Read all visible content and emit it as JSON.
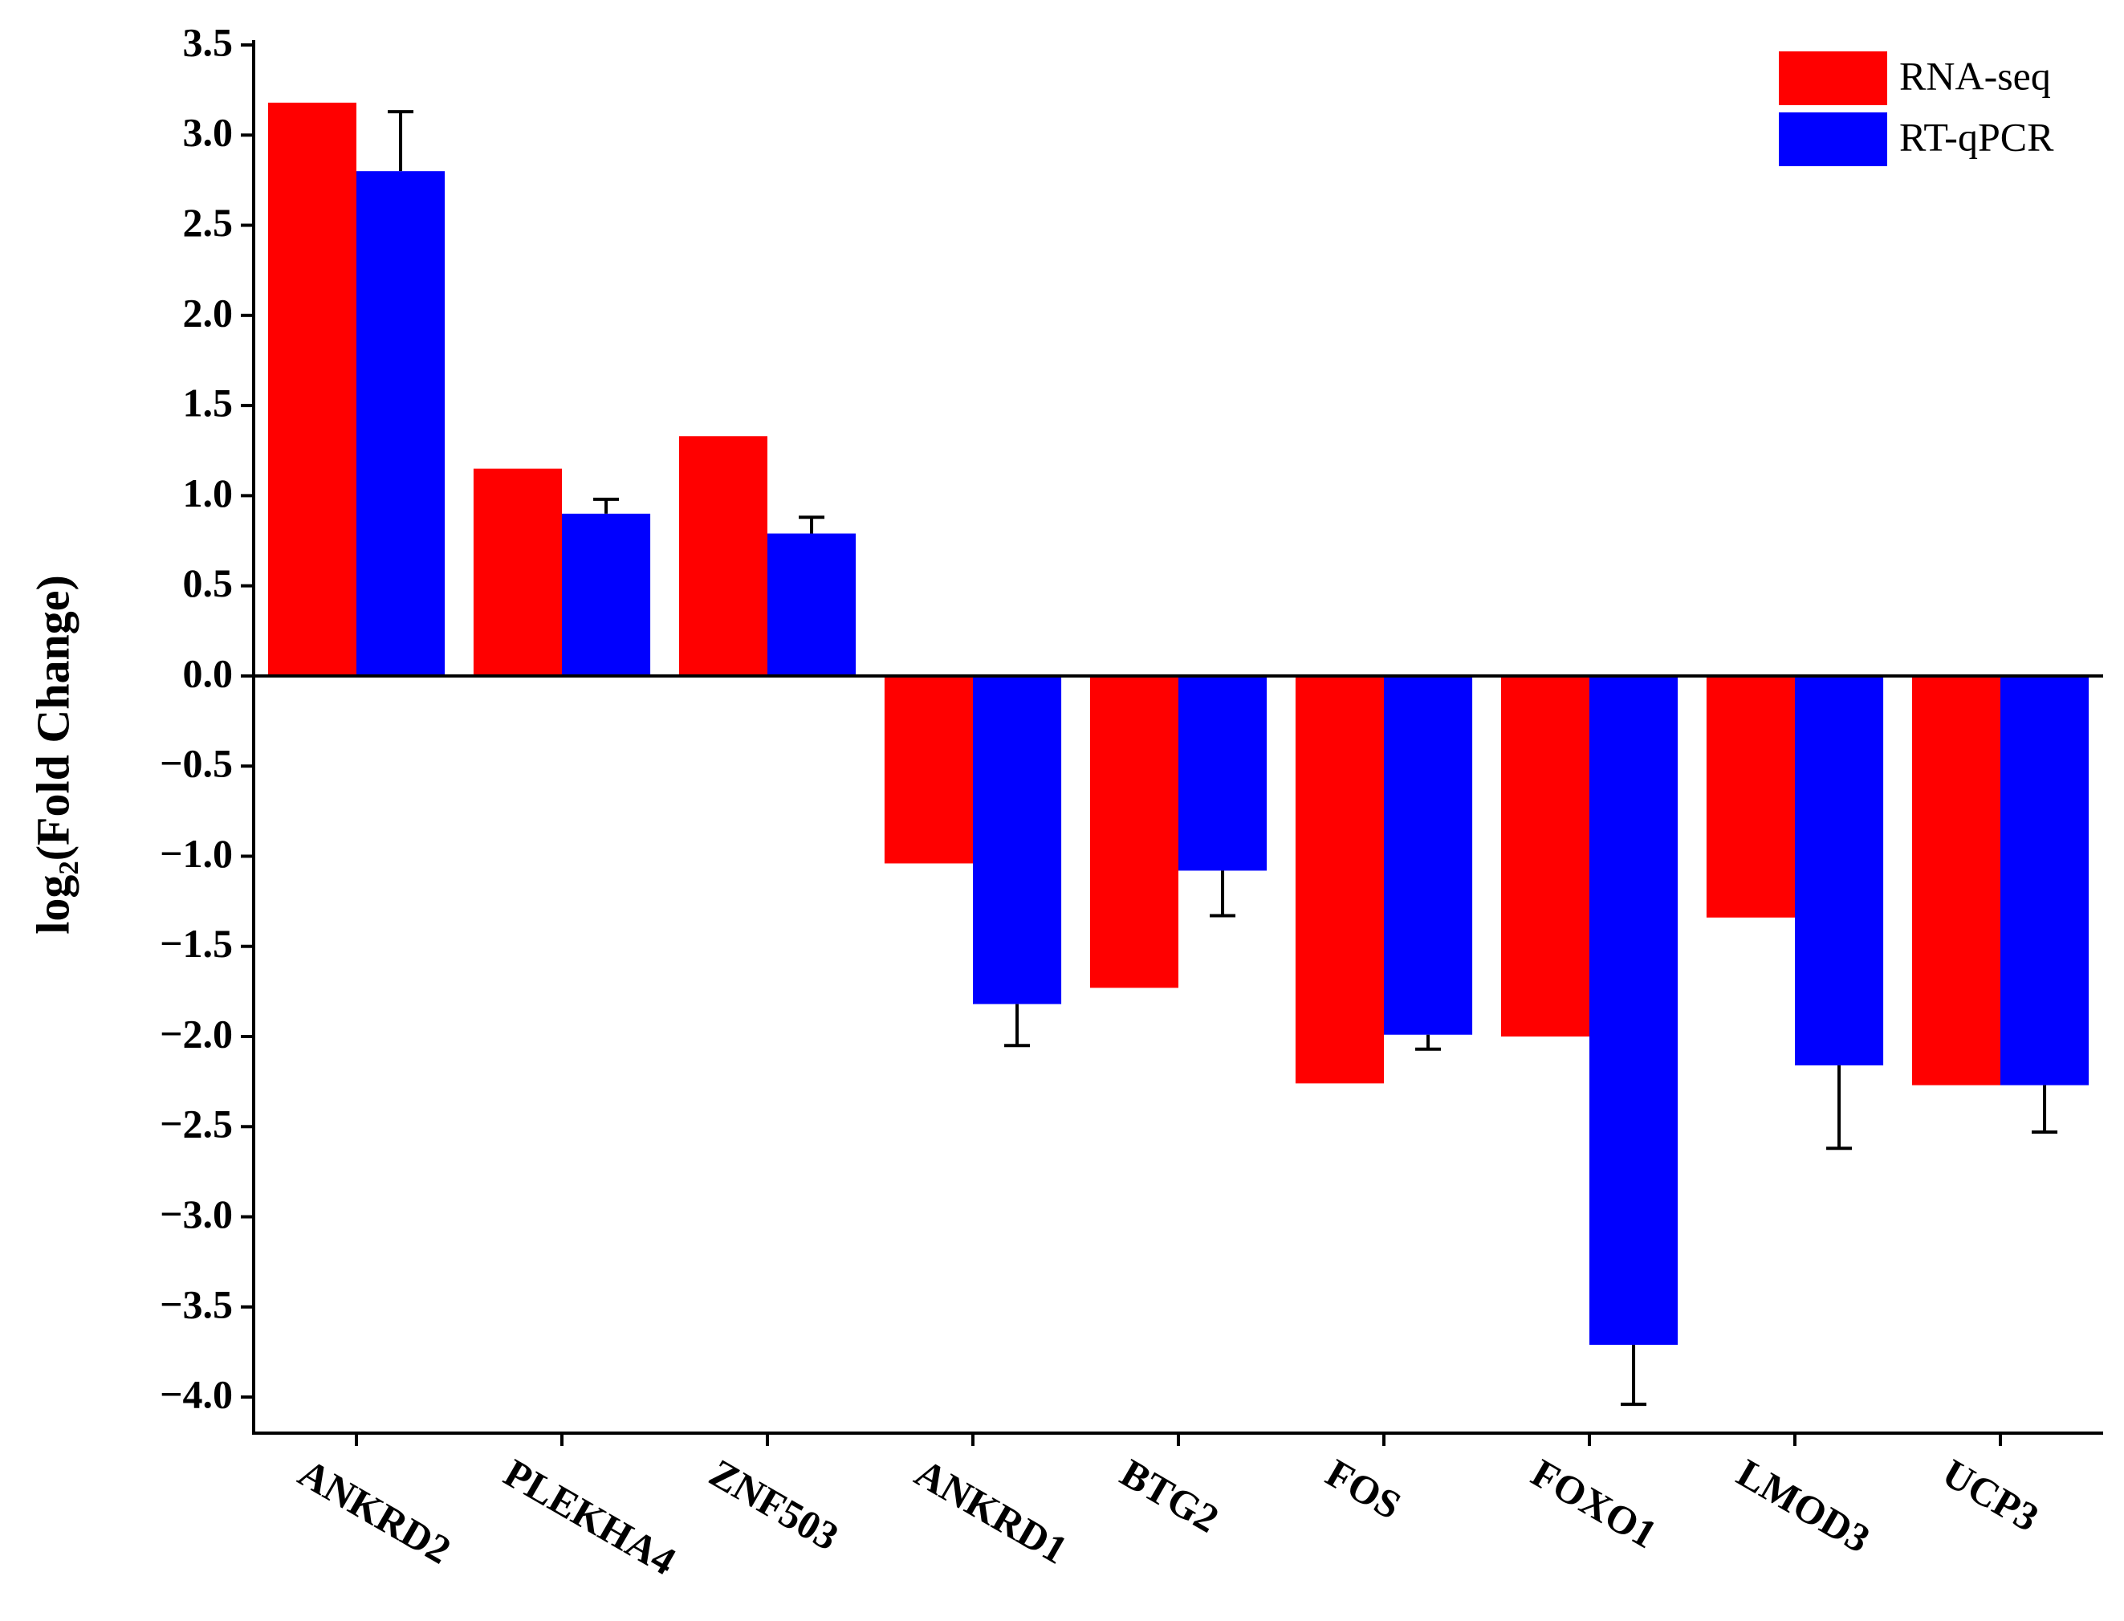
{
  "chart_data": {
    "type": "bar",
    "ylabel": "log₂(Fold Change)",
    "categories": [
      "ANKRD2",
      "PLEKHA4",
      "ZNF503",
      "ANKRD1",
      "BTG2",
      "FOS",
      "FOXO1",
      "LMOD3",
      "UCP3"
    ],
    "series": [
      {
        "name": "RNA-seq",
        "color": "#ff0000",
        "values": [
          3.18,
          1.15,
          1.33,
          -1.04,
          -1.73,
          -2.26,
          -2.0,
          -1.34,
          -2.27
        ]
      },
      {
        "name": "RT-qPCR",
        "color": "#0000ff",
        "values": [
          2.8,
          0.9,
          0.79,
          -1.82,
          -1.08,
          -1.99,
          -3.71,
          -2.16,
          -2.27
        ],
        "errors": [
          0.33,
          0.08,
          0.09,
          0.23,
          0.25,
          0.08,
          0.33,
          0.46,
          0.26
        ]
      }
    ],
    "ylim": [
      -4.2,
      3.5
    ],
    "yticks": [
      {
        "value": -4.0,
        "label": "−4.0"
      },
      {
        "value": -3.5,
        "label": "−3.5"
      },
      {
        "value": -3.0,
        "label": "−3.0"
      },
      {
        "value": -2.5,
        "label": "−2.5"
      },
      {
        "value": -2.0,
        "label": "−2.0"
      },
      {
        "value": -1.5,
        "label": "−1.5"
      },
      {
        "value": -1.0,
        "label": "−1.0"
      },
      {
        "value": -0.5,
        "label": "−0.5"
      },
      {
        "value": 0,
        "label": "0.0"
      },
      0.5,
      {
        "value": 1.0,
        "label": "1.0"
      },
      1.5,
      {
        "value": 2.0,
        "label": "2.0"
      },
      2.5,
      {
        "value": 3.0,
        "label": "3.0"
      },
      3.5
    ],
    "legend": "top-right"
  }
}
